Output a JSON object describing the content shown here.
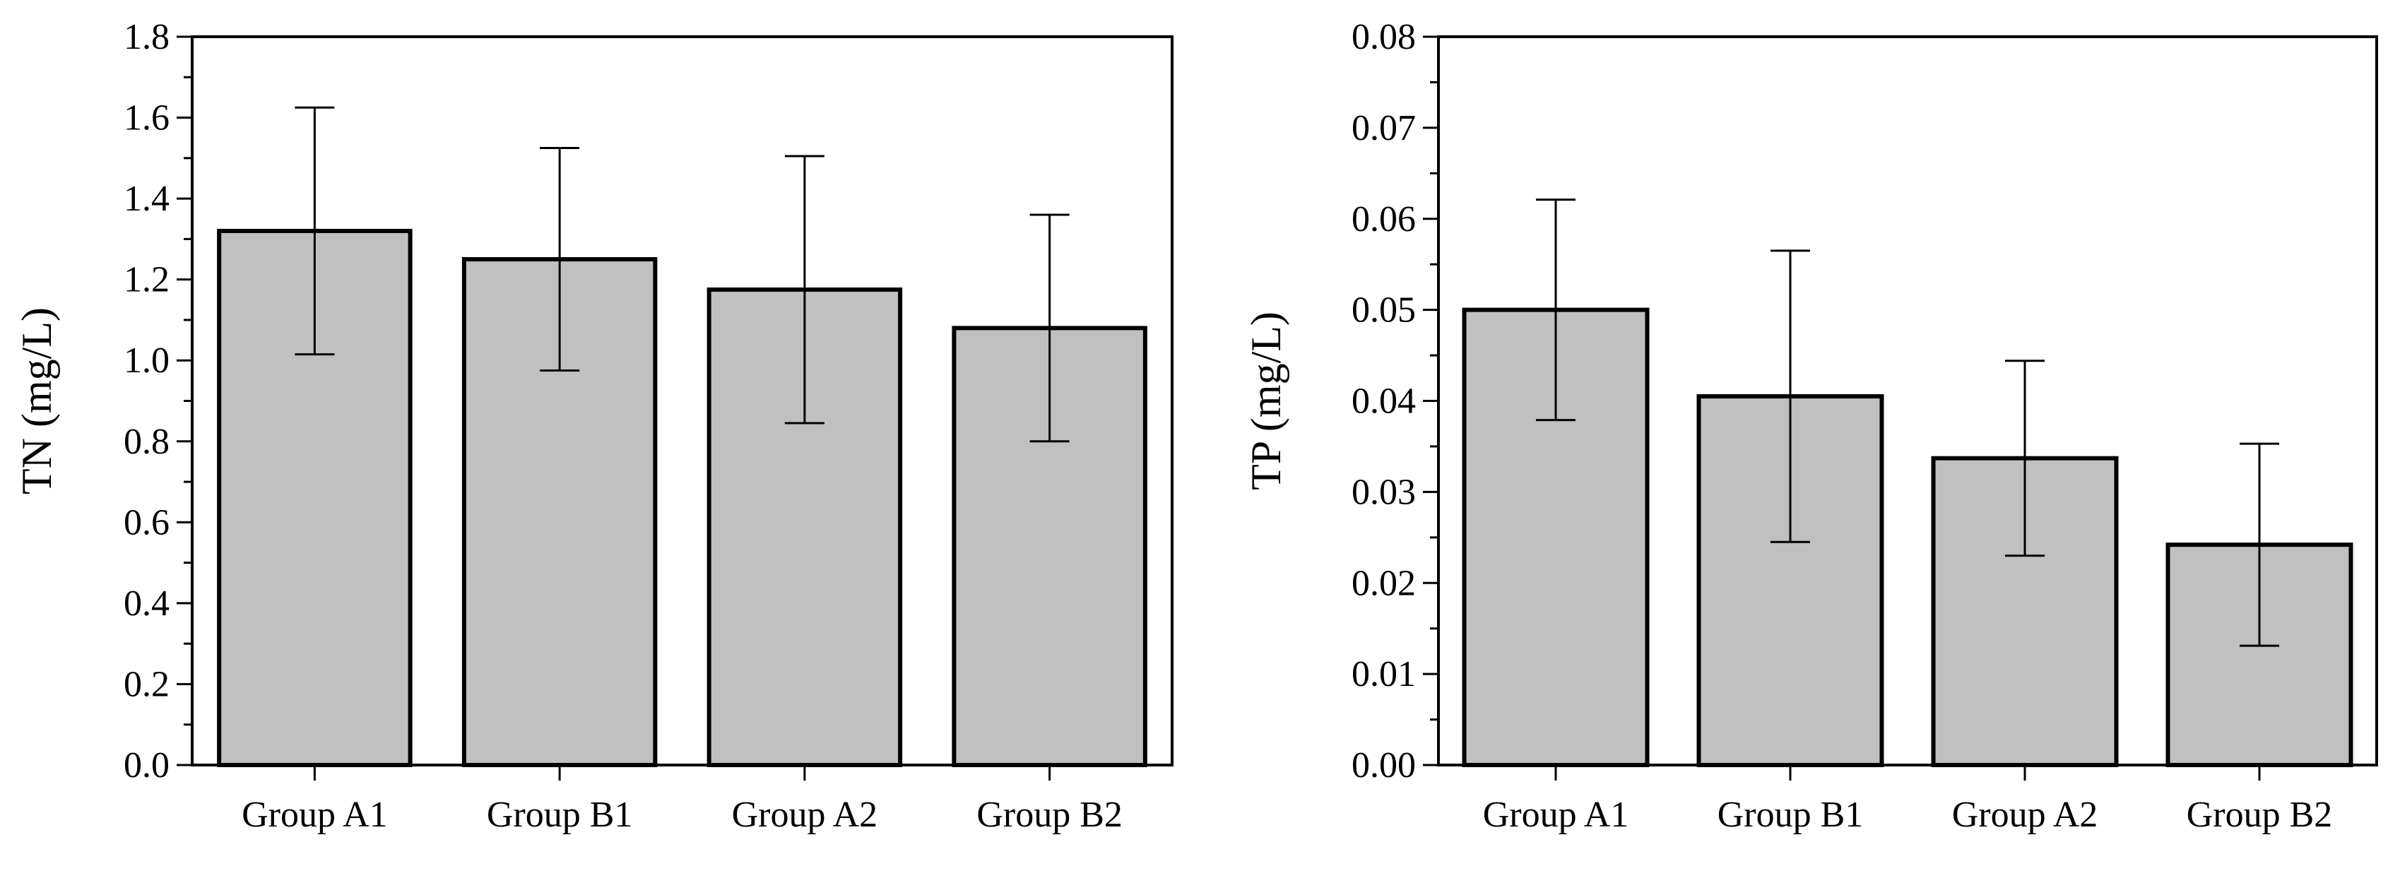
{
  "chart_data": [
    {
      "type": "bar",
      "ylabel": "TN (mg/L)",
      "xlabel": "",
      "categories": [
        "Group A1",
        "Group B1",
        "Group A2",
        "Group B2"
      ],
      "values": [
        1.32,
        1.25,
        1.175,
        1.08
      ],
      "errors": [
        0.305,
        0.275,
        0.33,
        0.28
      ],
      "ylim": [
        0,
        1.8
      ],
      "yticks": [
        0.0,
        0.2,
        0.4,
        0.6,
        0.8,
        1.0,
        1.2,
        1.4,
        1.6,
        1.8
      ],
      "ytick_labels": [
        "0.0",
        "0.2",
        "0.4",
        "0.6",
        "0.8",
        "1.0",
        "1.2",
        "1.4",
        "1.6",
        "1.8"
      ],
      "minor_step": 0.1,
      "bar_color": "#c0c0c0",
      "grid": false
    },
    {
      "type": "bar",
      "ylabel": "TP (mg/L)",
      "xlabel": "",
      "categories": [
        "Group A1",
        "Group B1",
        "Group A2",
        "Group B2"
      ],
      "values": [
        0.05,
        0.0405,
        0.0337,
        0.0242
      ],
      "errors": [
        0.0121,
        0.016,
        0.0107,
        0.0111
      ],
      "ylim": [
        0,
        0.08
      ],
      "yticks": [
        0.0,
        0.01,
        0.02,
        0.03,
        0.04,
        0.05,
        0.06,
        0.07,
        0.08
      ],
      "ytick_labels": [
        "0.00",
        "0.01",
        "0.02",
        "0.03",
        "0.04",
        "0.05",
        "0.06",
        "0.07",
        "0.08"
      ],
      "minor_step": 0.005,
      "bar_color": "#c0c0c0",
      "grid": false
    }
  ]
}
